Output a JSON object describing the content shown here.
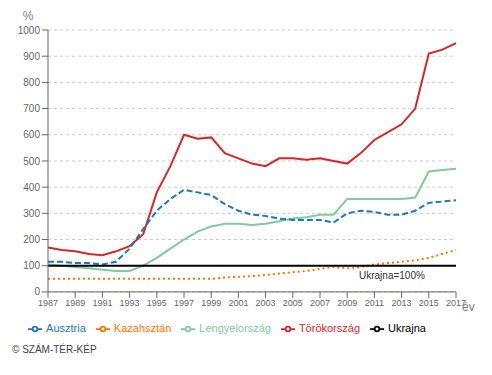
{
  "chart_data": {
    "type": "line",
    "x_label": "év",
    "y_label": "%",
    "copyright": "© SZÁM-TÉR-KÉP",
    "x": [
      1987,
      1988,
      1989,
      1990,
      1991,
      1992,
      1993,
      1994,
      1995,
      1996,
      1997,
      1998,
      1999,
      2000,
      2001,
      2002,
      2003,
      2004,
      2005,
      2006,
      2007,
      2008,
      2009,
      2010,
      2011,
      2012,
      2013,
      2014,
      2015,
      2016,
      2017
    ],
    "series": [
      {
        "name": "Törökország",
        "color": "#d62728",
        "line_style": "solid",
        "values": [
          170,
          160,
          155,
          145,
          140,
          155,
          175,
          220,
          380,
          480,
          600,
          585,
          590,
          530,
          510,
          490,
          480,
          510,
          510,
          505,
          510,
          500,
          490,
          530,
          580,
          610,
          640,
          700,
          910,
          925,
          950
        ]
      },
      {
        "name": "Lengyelország",
        "color": "#82ca9d",
        "line_style": "solid",
        "values": [
          105,
          100,
          95,
          90,
          85,
          80,
          80,
          100,
          130,
          165,
          200,
          230,
          250,
          260,
          260,
          255,
          260,
          270,
          280,
          285,
          295,
          295,
          355,
          355,
          355,
          355,
          355,
          360,
          460,
          465,
          470
        ]
      },
      {
        "name": "Ausztria",
        "color": "#1f77b4",
        "line_style": "dashed",
        "values": [
          115,
          115,
          110,
          110,
          105,
          115,
          165,
          240,
          310,
          355,
          390,
          380,
          370,
          335,
          310,
          295,
          290,
          280,
          275,
          275,
          275,
          265,
          300,
          310,
          305,
          295,
          295,
          310,
          340,
          345,
          350
        ]
      },
      {
        "name": "Kazahsztán",
        "color": "#ff7300",
        "line_style": "dotted",
        "values": [
          50,
          50,
          50,
          50,
          50,
          50,
          50,
          50,
          50,
          50,
          50,
          50,
          50,
          55,
          58,
          60,
          65,
          70,
          75,
          80,
          88,
          95,
          90,
          95,
          105,
          110,
          115,
          120,
          130,
          145,
          160
        ]
      },
      {
        "name": "Ukrajna",
        "color": "#000000",
        "line_style": "solid",
        "values": [
          100,
          100,
          100,
          100,
          100,
          100,
          100,
          100,
          100,
          100,
          100,
          100,
          100,
          100,
          100,
          100,
          100,
          100,
          100,
          100,
          100,
          100,
          100,
          100,
          100,
          100,
          100,
          100,
          100,
          100,
          100
        ]
      }
    ],
    "xlim": [
      1987,
      2017
    ],
    "xticks": [
      1987,
      1989,
      1991,
      1993,
      1995,
      1997,
      1999,
      2001,
      2003,
      2005,
      2007,
      2009,
      2011,
      2013,
      2015,
      2017
    ],
    "ylim": [
      0,
      1000
    ],
    "yticks": [
      0,
      100,
      200,
      300,
      400,
      500,
      600,
      700,
      800,
      900,
      1000
    ],
    "grid": true,
    "legend": "bottom",
    "annotations": [
      {
        "text": "Ukrajna=100%",
        "x": 2009.5,
        "y": 62
      }
    ]
  }
}
